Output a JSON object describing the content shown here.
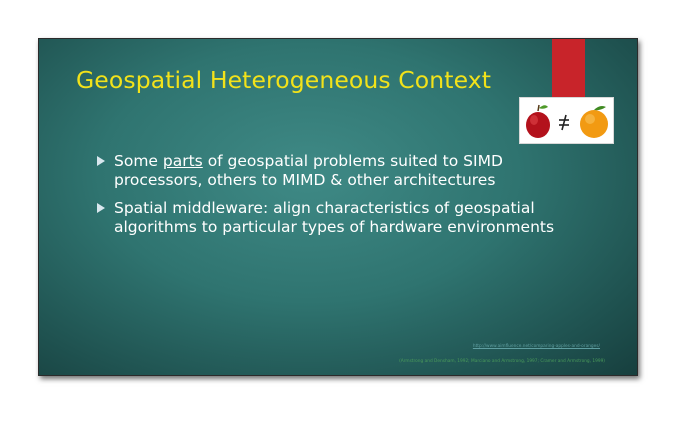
{
  "slide": {
    "title": "Geospatial Heterogeneous Context",
    "image_icon": "apple-not-equal-orange-icon",
    "bullets": [
      {
        "before": "Some ",
        "underlined": "parts",
        "after": " of geospatial problems suited to SIMD processors, others to MIMD & other architectures"
      },
      {
        "text": "Spatial middleware: align characteristics of geospatial algorithms to particular types of hardware environments"
      }
    ],
    "reference_link": "http://www.aimfluence.net/comparing-apples-and-oranges/",
    "citations": "(Armstrong and Densham, 1992; Marciano and Armstrong, 1997; Cramer and Armstrong, 1999)"
  },
  "colors": {
    "title": "#f2e21a",
    "background": "#2f7470",
    "accent_bar": "#c8242a",
    "bullet_text": "#ffffff"
  }
}
